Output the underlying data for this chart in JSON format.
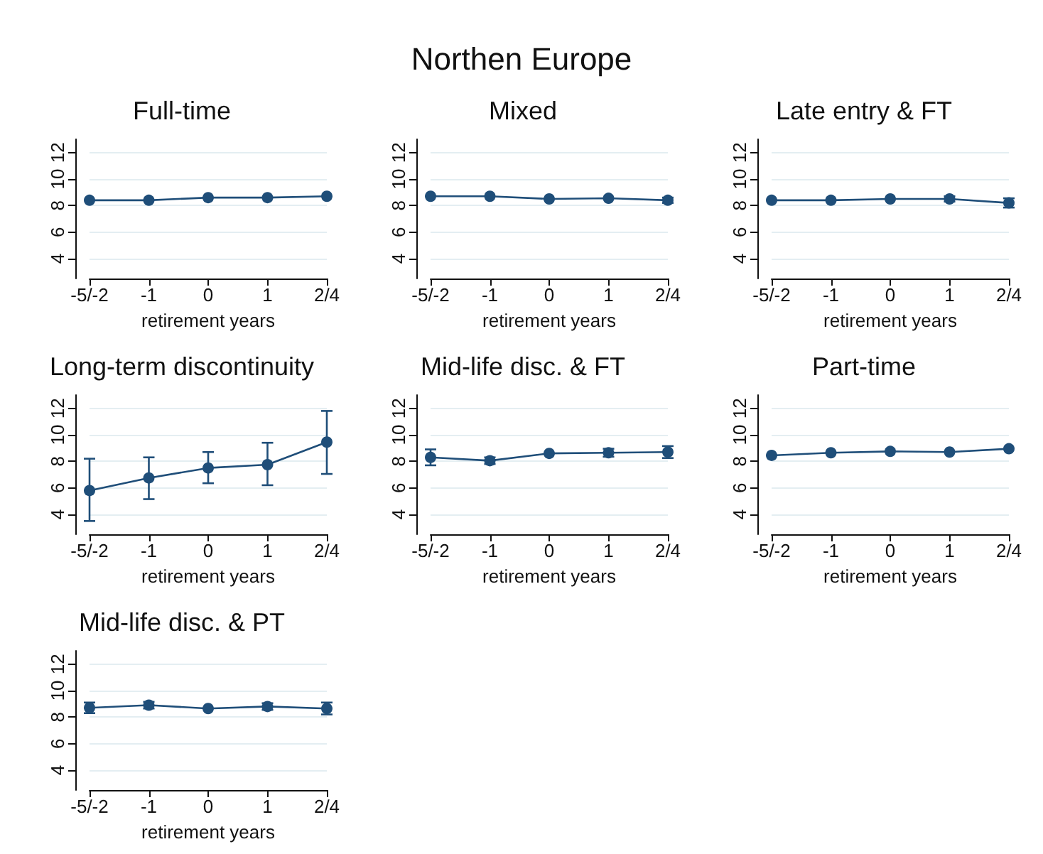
{
  "chart_data": [
    {
      "type": "other",
      "title": "Northen Europe"
    },
    {
      "type": "line",
      "title": "Full-time",
      "xlabel": "retirement years",
      "categories": [
        "-5/-2",
        "-1",
        "0",
        "1",
        "2/4"
      ],
      "ylim": [
        2.5,
        13
      ],
      "yticks": [
        4,
        6,
        8,
        10,
        12
      ],
      "grid": "y",
      "marker": "circle",
      "line_style": "solid",
      "series": [
        {
          "color": "#1f4e79",
          "values": [
            8.4,
            8.4,
            8.6,
            8.6,
            8.7
          ]
        }
      ]
    },
    {
      "type": "line",
      "title": "Mixed",
      "xlabel": "retirement years",
      "categories": [
        "-5/-2",
        "-1",
        "0",
        "1",
        "2/4"
      ],
      "ylim": [
        2.5,
        13
      ],
      "yticks": [
        4,
        6,
        8,
        10,
        12
      ],
      "grid": "y",
      "marker": "circle",
      "line_style": "solid",
      "series": [
        {
          "color": "#1f4e79",
          "values": [
            8.7,
            8.7,
            8.5,
            8.55,
            8.4
          ],
          "errors": [
            null,
            null,
            null,
            null,
            [
              8.2,
              8.6
            ]
          ]
        }
      ]
    },
    {
      "type": "line",
      "title": "Late entry & FT",
      "xlabel": "retirement years",
      "categories": [
        "-5/-2",
        "-1",
        "0",
        "1",
        "2/4"
      ],
      "ylim": [
        2.5,
        13
      ],
      "yticks": [
        4,
        6,
        8,
        10,
        12
      ],
      "grid": "y",
      "marker": "circle",
      "line_style": "solid",
      "series": [
        {
          "color": "#1f4e79",
          "values": [
            8.4,
            8.4,
            8.5,
            8.5,
            8.2
          ],
          "errors": [
            null,
            null,
            null,
            [
              8.3,
              8.7
            ],
            [
              7.85,
              8.55
            ]
          ]
        }
      ]
    },
    {
      "type": "line",
      "title": "Long-term discontinuity",
      "xlabel": "retirement years",
      "categories": [
        "-5/-2",
        "-1",
        "0",
        "1",
        "2/4"
      ],
      "ylim": [
        2.5,
        13
      ],
      "yticks": [
        4,
        6,
        8,
        10,
        12
      ],
      "grid": "y",
      "marker": "circle",
      "line_style": "solid",
      "series": [
        {
          "color": "#1f4e79",
          "values": [
            5.8,
            6.75,
            7.5,
            7.75,
            9.45
          ],
          "errors": [
            [
              3.5,
              8.2
            ],
            [
              5.15,
              8.3
            ],
            [
              6.35,
              8.7
            ],
            [
              6.2,
              9.4
            ],
            [
              7.05,
              11.8
            ]
          ]
        }
      ]
    },
    {
      "type": "line",
      "title": "Mid-life disc. & FT",
      "xlabel": "retirement years",
      "categories": [
        "-5/-2",
        "-1",
        "0",
        "1",
        "2/4"
      ],
      "ylim": [
        2.5,
        13
      ],
      "yticks": [
        4,
        6,
        8,
        10,
        12
      ],
      "grid": "y",
      "marker": "circle",
      "line_style": "solid",
      "series": [
        {
          "color": "#1f4e79",
          "values": [
            8.3,
            8.05,
            8.6,
            8.65,
            8.7
          ],
          "errors": [
            [
              7.7,
              8.9
            ],
            [
              7.8,
              8.3
            ],
            null,
            [
              8.35,
              8.95
            ],
            [
              8.25,
              9.15
            ]
          ]
        }
      ]
    },
    {
      "type": "line",
      "title": "Part-time",
      "xlabel": "retirement years",
      "categories": [
        "-5/-2",
        "-1",
        "0",
        "1",
        "2/4"
      ],
      "ylim": [
        2.5,
        13
      ],
      "yticks": [
        4,
        6,
        8,
        10,
        12
      ],
      "grid": "y",
      "marker": "circle",
      "line_style": "solid",
      "series": [
        {
          "color": "#1f4e79",
          "values": [
            8.45,
            8.65,
            8.75,
            8.7,
            8.95
          ]
        }
      ]
    },
    {
      "type": "line",
      "title": "Mid-life disc. & PT",
      "xlabel": "retirement years",
      "categories": [
        "-5/-2",
        "-1",
        "0",
        "1",
        "2/4"
      ],
      "ylim": [
        2.5,
        13
      ],
      "yticks": [
        4,
        6,
        8,
        10,
        12
      ],
      "grid": "y",
      "marker": "circle",
      "line_style": "solid",
      "series": [
        {
          "color": "#1f4e79",
          "values": [
            8.7,
            8.9,
            8.65,
            8.8,
            8.65
          ],
          "errors": [
            [
              8.3,
              9.1
            ],
            [
              8.65,
              9.15
            ],
            null,
            [
              8.55,
              9.05
            ],
            [
              8.2,
              9.1
            ]
          ]
        }
      ]
    }
  ]
}
